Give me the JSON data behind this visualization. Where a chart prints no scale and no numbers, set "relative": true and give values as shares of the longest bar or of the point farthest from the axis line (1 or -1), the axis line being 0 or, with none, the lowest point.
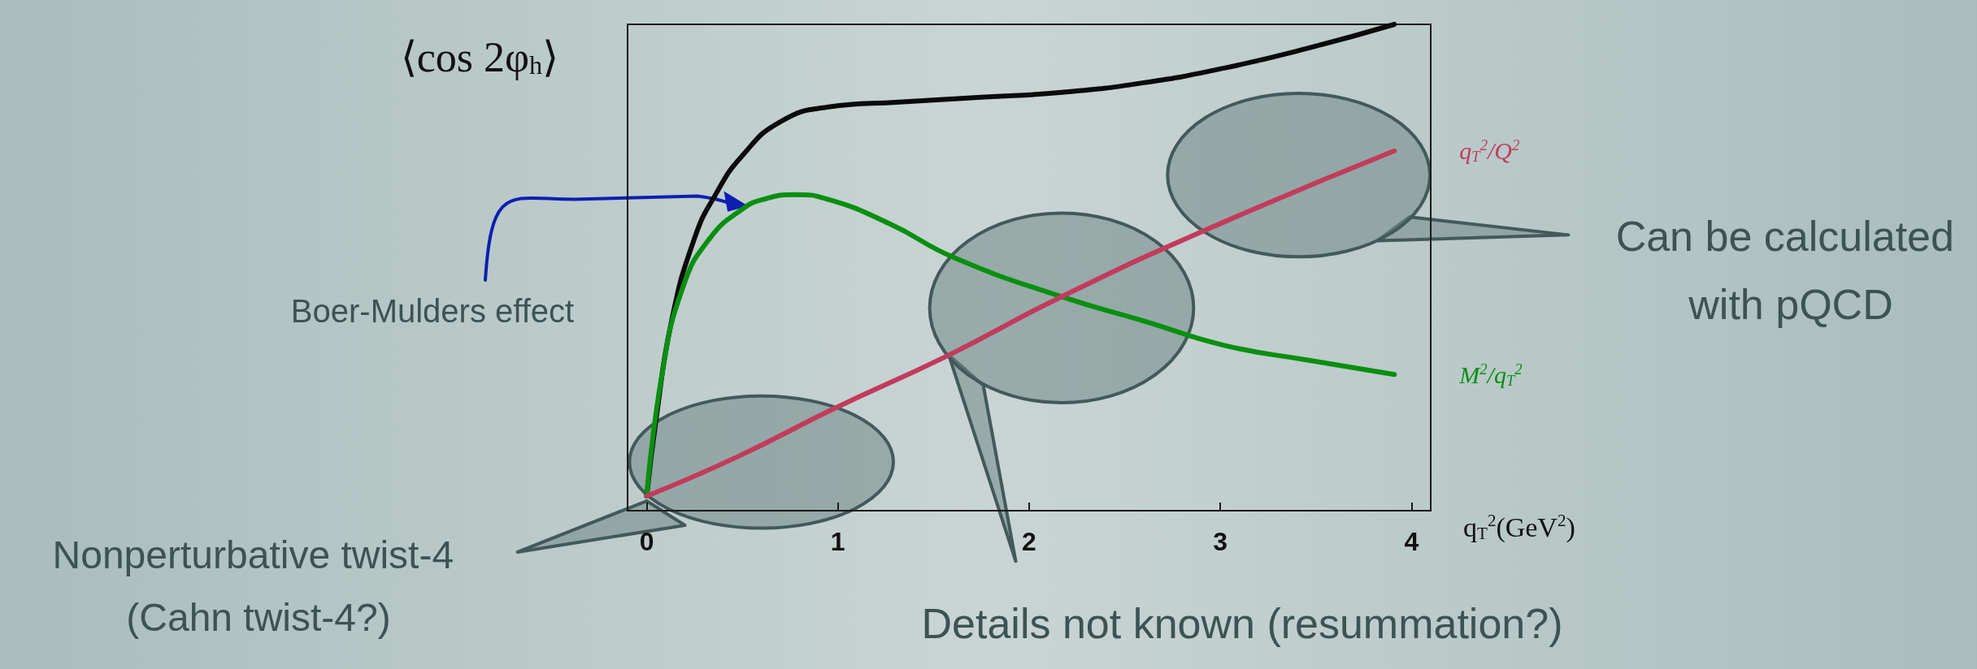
{
  "chart_data": {
    "type": "line",
    "relative": true,
    "ylabel": "⟨cos 2φ$_{h}$⟩",
    "xlabel": "q$_{T}$$^{2}$(GeV$^{2}$)",
    "xlim": [
      -0.1,
      4.1
    ],
    "xticks": [
      0,
      1,
      2,
      3,
      4
    ],
    "grid": false,
    "legend": false,
    "marker": "none",
    "line_style": "solid",
    "series": [
      {
        "color": "#0a0a0a",
        "x": [
          0,
          0.05,
          0.13,
          0.25,
          0.36,
          0.5,
          0.7,
          0.95,
          1.32,
          1.75,
          2.17,
          2.6,
          3.02,
          3.45,
          3.91
        ],
        "values": [
          0.03,
          0.19,
          0.39,
          0.56,
          0.65,
          0.73,
          0.8,
          0.83,
          0.84,
          0.85,
          0.86,
          0.88,
          0.91,
          0.95,
          1.0
        ]
      },
      {
        "name": "M$^{2}$/q$_{T}$$^{2}$",
        "color": "#0a8f10",
        "x": [
          0,
          0.08,
          0.19,
          0.33,
          0.5,
          0.61,
          0.77,
          0.95,
          1.27,
          1.61,
          2.17,
          2.6,
          3.02,
          3.45,
          3.91
        ],
        "values": [
          0.03,
          0.28,
          0.46,
          0.56,
          0.62,
          0.64,
          0.65,
          0.64,
          0.59,
          0.52,
          0.44,
          0.39,
          0.34,
          0.31,
          0.28
        ]
      },
      {
        "name": "q$_{T}$$^{2}$/Q$^{2}$",
        "color": "#c23b5c",
        "x": [
          0,
          0.47,
          0.98,
          1.58,
          2.17,
          2.94,
          3.91
        ],
        "values": [
          0.03,
          0.11,
          0.21,
          0.32,
          0.44,
          0.58,
          0.74
        ]
      }
    ],
    "annotations": [
      "Boer-Mulders effect",
      "Nonperturbative twist-4 (Cahn twist-4?)",
      "Details not known (resummation?)",
      "Can be calculated with pQCD"
    ]
  }
}
